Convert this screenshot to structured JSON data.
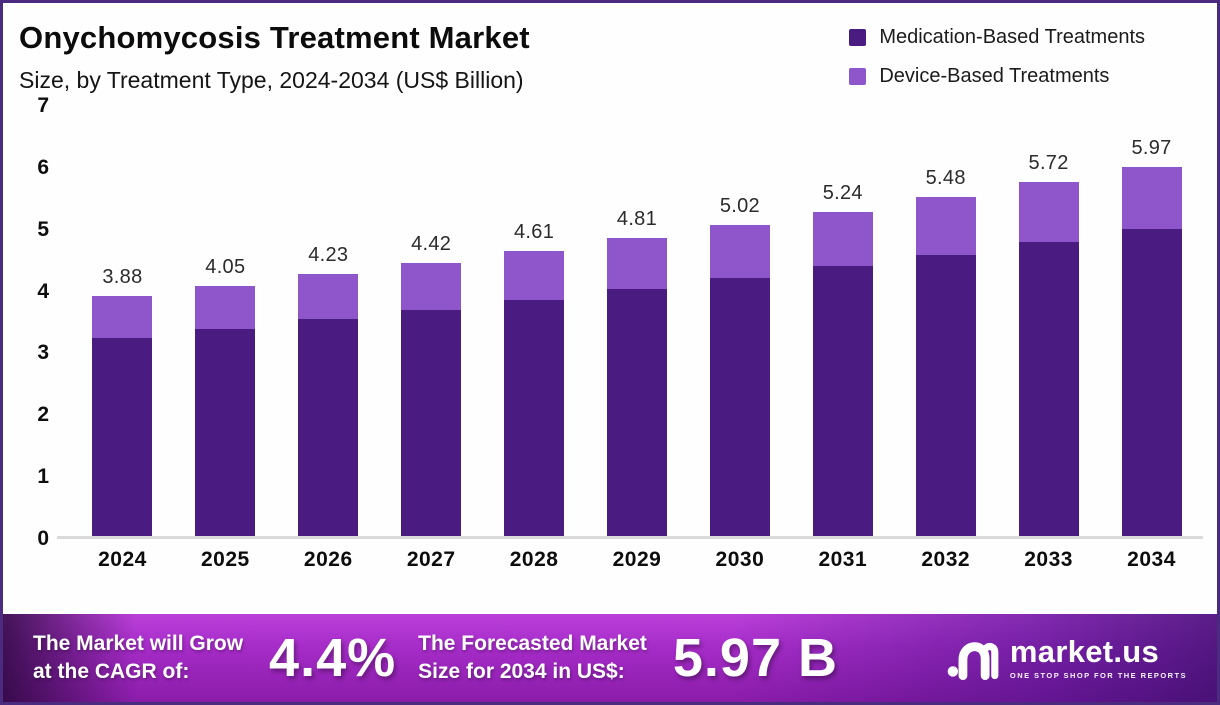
{
  "header": {
    "title": "Onychomycosis Treatment Market",
    "subtitle": "Size, by Treatment Type, 2024-2034 (US$ Billion)"
  },
  "legend": [
    {
      "label": "Medication-Based Treatments",
      "color": "#4a1c82"
    },
    {
      "label": "Device-Based Treatments",
      "color": "#8f56cc"
    }
  ],
  "chart_data": {
    "type": "bar",
    "stacked": true,
    "title": "Onychomycosis Treatment Market Size, by Treatment Type, 2024-2034 (US$ Billion)",
    "categories": [
      "2024",
      "2025",
      "2026",
      "2027",
      "2028",
      "2029",
      "2030",
      "2031",
      "2032",
      "2033",
      "2034"
    ],
    "series": [
      {
        "name": "Medication-Based Treatments",
        "color": "#4a1c82",
        "values": [
          3.2,
          3.35,
          3.5,
          3.66,
          3.82,
          3.99,
          4.17,
          4.36,
          4.55,
          4.75,
          4.96
        ]
      },
      {
        "name": "Device-Based Treatments",
        "color": "#8f56cc",
        "values": [
          0.68,
          0.7,
          0.73,
          0.76,
          0.79,
          0.82,
          0.85,
          0.88,
          0.93,
          0.97,
          1.01
        ]
      }
    ],
    "totals": [
      3.88,
      4.05,
      4.23,
      4.42,
      4.61,
      4.81,
      5.02,
      5.24,
      5.48,
      5.72,
      5.97
    ],
    "total_labels": [
      "3.88",
      "4.05",
      "4.23",
      "4.42",
      "4.61",
      "4.81",
      "5.02",
      "5.24",
      "5.48",
      "5.72",
      "5.97"
    ],
    "xlabel": "",
    "ylabel": "US$ Billion",
    "ylim": [
      0,
      7
    ],
    "yticks": [
      0,
      1,
      2,
      3,
      4,
      5,
      6,
      7
    ],
    "grid": false,
    "legend_position": "top-right",
    "value_labels": "total above each stacked bar"
  },
  "banner": {
    "cagr_label_line1": "The Market will Grow",
    "cagr_label_line2": "at the CAGR of:",
    "cagr_value": "4.4%",
    "forecast_label_line1": "The Forecasted Market",
    "forecast_label_line2": "Size for 2034 in US$:",
    "forecast_value": "5.97 B",
    "logo_name": "market.us",
    "logo_tagline": "ONE STOP SHOP FOR THE REPORTS"
  },
  "colors": {
    "frame_border": "#4b2b80",
    "banner_center": "#a62cc8",
    "baseline": "#dadada"
  }
}
